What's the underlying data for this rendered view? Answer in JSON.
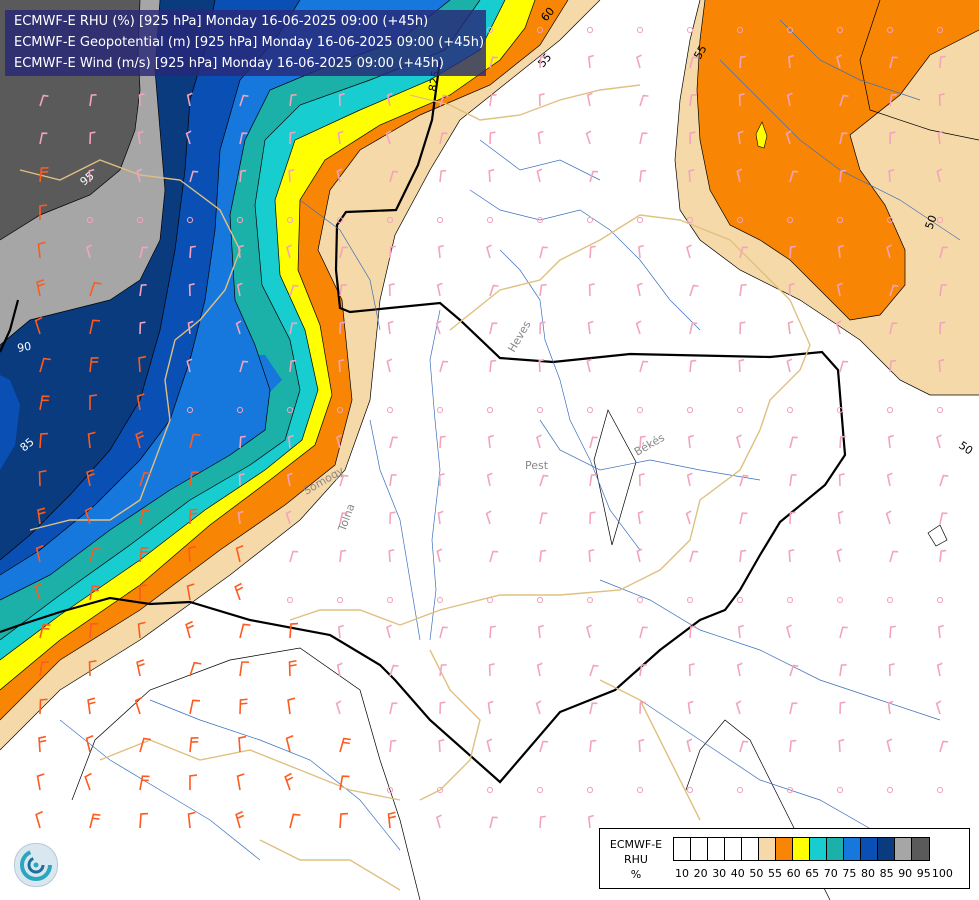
{
  "title_lines": [
    "ECMWF-E RHU (%) [925 hPa] Monday 16-06-2025 09:00 (+45h)",
    "ECMWF-E Geopotential (m) [925 hPa] Monday 16-06-2025 09:00 (+45h)",
    "ECMWF-E Wind (m/s) [925 hPa] Monday 16-06-2025 09:00 (+45h)"
  ],
  "legend": {
    "model": "ECMWF-E",
    "variable": "RHU",
    "unit": "%",
    "colors": [
      "#ffffff",
      "#ffffff",
      "#ffffff",
      "#ffffff",
      "#ffffff",
      "#f6d9a9",
      "#f88604",
      "#ffff00",
      "#18cdd0",
      "#1bb0a8",
      "#1678dd",
      "#0a4fb4",
      "#093b7e",
      "#a6a6a6",
      "#5a5a5a"
    ],
    "ticks": [
      "10",
      "20",
      "30",
      "40",
      "50",
      "55",
      "60",
      "65",
      "70",
      "75",
      "80",
      "85",
      "90",
      "95",
      "100"
    ]
  },
  "contour_labels": {
    "rhu": [
      "60",
      "55",
      "55",
      "50",
      "50",
      "95",
      "85"
    ],
    "geopotential": [
      "825",
      "90"
    ]
  },
  "place_labels": [
    "Heves",
    "Pest",
    "Békés",
    "Tolna",
    "Somogy"
  ],
  "chart_data": {
    "type": "map",
    "fields": [
      "RHU (%)",
      "Geopotential (m)",
      "Wind (m/s)"
    ],
    "level": "925 hPa",
    "valid_time": "Monday 16-06-2025 09:00",
    "lead_time": "+45h",
    "rhu_scale": {
      "thresholds": [
        10,
        20,
        30,
        40,
        50,
        55,
        60,
        65,
        70,
        75,
        80,
        85,
        90,
        95,
        100
      ],
      "colors": [
        "#ffffff",
        "#ffffff",
        "#ffffff",
        "#ffffff",
        "#ffffff",
        "#f6d9a9",
        "#f88604",
        "#ffff00",
        "#18cdd0",
        "#1bb0a8",
        "#1678dd",
        "#0a4fb4",
        "#093b7e",
        "#a6a6a6",
        "#5a5a5a"
      ]
    }
  }
}
